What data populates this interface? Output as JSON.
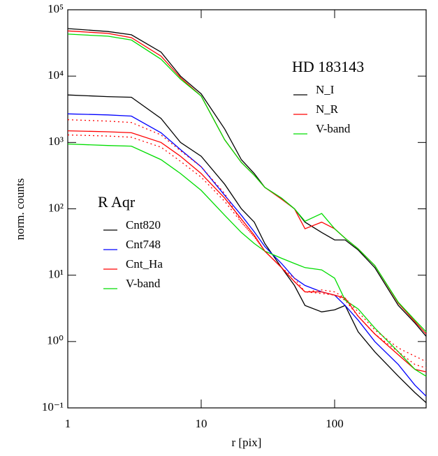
{
  "chart_data": {
    "type": "line",
    "log_x": true,
    "log_y": true,
    "xlabel": "r [pix]",
    "ylabel": "norm. counts",
    "xlim": [
      1,
      485
    ],
    "ylim": [
      0.1,
      100000
    ],
    "xticks": [
      1,
      10,
      100
    ],
    "yticks": [
      {
        "value": 0.1,
        "label": "10⁻¹"
      },
      {
        "value": 1,
        "label": "10⁰"
      },
      {
        "value": 10,
        "label": "10¹"
      },
      {
        "value": 100,
        "label": "10²"
      },
      {
        "value": 1000,
        "label": "10³"
      },
      {
        "value": 10000,
        "label": "10⁴"
      },
      {
        "value": 100000,
        "label": "10⁵"
      }
    ],
    "x": [
      1,
      2,
      3,
      5,
      7,
      10,
      15,
      20,
      25,
      30,
      40,
      50,
      60,
      80,
      100,
      120,
      150,
      200,
      300,
      400,
      485
    ],
    "groups": [
      {
        "title": "HD 183143",
        "series": [
          {
            "name": "N_I",
            "color": "#000000",
            "values": [
              52000,
              47000,
              42000,
              23000,
              10000,
              5400,
              1600,
              550,
              340,
              210,
              145,
              100,
              63,
              44,
              34,
              34,
              24,
              13,
              3.5,
              1.9,
              1.2
            ]
          },
          {
            "name": "N_R",
            "color": "#ff0000",
            "values": [
              48000,
              44000,
              38000,
              20000,
              9500,
              5000,
              1100,
              500,
              320,
              210,
              140,
              100,
              50,
              63,
              50,
              36,
              25,
              14,
              3.8,
              2.0,
              1.3
            ]
          },
          {
            "name": "V-band",
            "color": "#00dd00",
            "values": [
              43000,
              40000,
              35000,
              18000,
              9000,
              5000,
              1100,
              500,
              320,
              210,
              145,
              100,
              65,
              85,
              50,
              36,
              25,
              14,
              3.9,
              2.1,
              1.4
            ]
          }
        ]
      },
      {
        "title": "R Aqr",
        "series": [
          {
            "name": "Cnt820",
            "color": "#000000",
            "values": [
              5200,
              4900,
              4800,
              2300,
              1000,
              620,
              235,
              100,
              63,
              30,
              13,
              7,
              3.5,
              2.8,
              3.0,
              3.5,
              1.4,
              0.7,
              0.3,
              0.17,
              0.12
            ]
          },
          {
            "name": "Cnt748",
            "color": "#0000ff",
            "values": [
              2700,
              2600,
              2500,
              1400,
              780,
              430,
              160,
              80,
              45,
              27,
              15,
              9,
              7,
              5.6,
              5.0,
              3.5,
              2.1,
              1.0,
              0.45,
              0.22,
              0.15
            ]
          },
          {
            "name": "Cnt_Ha",
            "color": "#ff0000",
            "values": [
              1500,
              1450,
              1400,
              1000,
              620,
              340,
              145,
              70,
              40,
              23,
              13,
              8,
              5.6,
              5.6,
              5.0,
              4.5,
              2.4,
              1.3,
              0.63,
              0.38,
              0.35
            ]
          },
          {
            "name": "V-band",
            "color": "#00dd00",
            "values": [
              950,
              900,
              880,
              550,
              340,
              190,
              80,
              44,
              30,
              23,
              18,
              15,
              13,
              12,
              9,
              4.2,
              3.1,
              1.6,
              0.7,
              0.38,
              0.3
            ]
          },
          {
            "color": "#ff0000",
            "dash": "dotted",
            "values": [
              2200,
              2100,
              2000,
              1300,
              750,
              430,
              170,
              63,
              38,
              23,
              13,
              9,
              5.6,
              6,
              5.6,
              4.5,
              2.8,
              1.5,
              0.8,
              0.6,
              0.5
            ]
          },
          {
            "color": "#ff0000",
            "dash": "dotted",
            "values": [
              1300,
              1250,
              1200,
              850,
              520,
              300,
              130,
              63,
              38,
              23,
              13,
              8,
              5.6,
              5.3,
              5,
              4.2,
              2.4,
              1.3,
              0.7,
              0.45,
              0.4
            ]
          }
        ]
      }
    ]
  }
}
